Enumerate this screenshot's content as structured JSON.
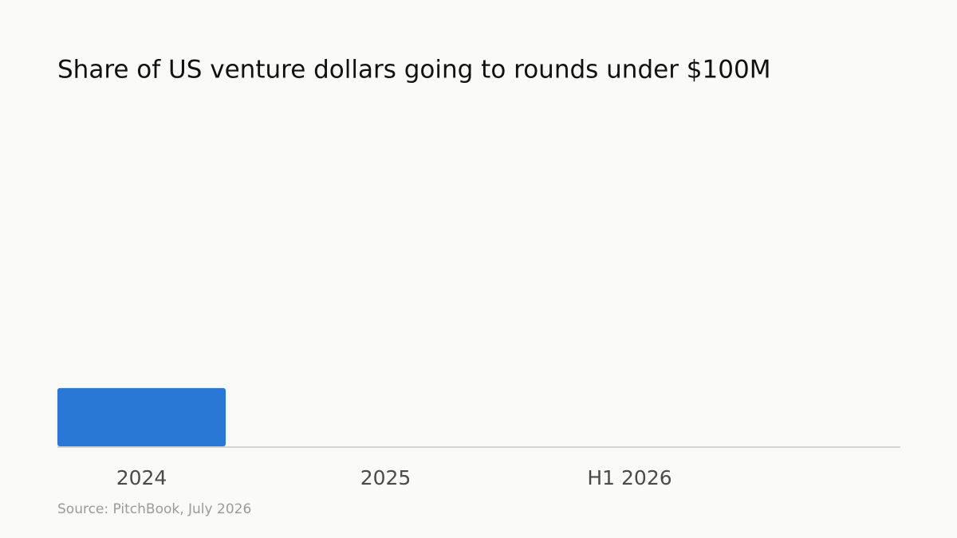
{
  "chart_data": {
    "type": "bar",
    "title": "Share of US venture dollars going to rounds under $100M",
    "categories": [
      "2024",
      "2025",
      "H1 2026"
    ],
    "values": [
      17,
      null,
      null
    ],
    "color": "#2a78d6",
    "ylim": [
      0,
      100
    ],
    "source": "Source: PitchBook, July 2026"
  }
}
